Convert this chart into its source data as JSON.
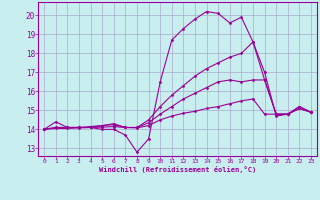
{
  "xlabel": "Windchill (Refroidissement éolien,°C)",
  "bg_color": "#c8eef0",
  "grid_color": "#aaaacc",
  "line_color": "#990099",
  "xlim": [
    -0.5,
    23.5
  ],
  "ylim": [
    12.6,
    20.7
  ],
  "yticks": [
    13,
    14,
    15,
    16,
    17,
    18,
    19,
    20
  ],
  "xticks": [
    0,
    1,
    2,
    3,
    4,
    5,
    6,
    7,
    8,
    9,
    10,
    11,
    12,
    13,
    14,
    15,
    16,
    17,
    18,
    19,
    20,
    21,
    22,
    23
  ],
  "series": [
    {
      "x": [
        0,
        1,
        2,
        3,
        4,
        5,
        6,
        7,
        8,
        9,
        10,
        11,
        12,
        13,
        14,
        15,
        16,
        17,
        18,
        19,
        20,
        21,
        22,
        23
      ],
      "y": [
        14.0,
        14.4,
        14.1,
        14.1,
        14.1,
        14.0,
        14.0,
        13.7,
        12.8,
        13.5,
        16.5,
        18.7,
        19.3,
        19.8,
        20.2,
        20.1,
        19.6,
        19.9,
        18.6,
        17.0,
        14.7,
        14.8,
        15.1,
        14.9
      ]
    },
    {
      "x": [
        0,
        1,
        2,
        3,
        4,
        5,
        6,
        7,
        8,
        9,
        10,
        11,
        12,
        13,
        14,
        15,
        16,
        17,
        18,
        19,
        20,
        21,
        22,
        23
      ],
      "y": [
        14.0,
        14.1,
        14.1,
        14.1,
        14.1,
        14.2,
        14.3,
        14.1,
        14.1,
        14.5,
        15.2,
        15.8,
        16.3,
        16.8,
        17.2,
        17.5,
        17.8,
        18.0,
        18.6,
        16.6,
        14.8,
        14.8,
        15.2,
        14.9
      ]
    },
    {
      "x": [
        0,
        1,
        2,
        3,
        4,
        5,
        6,
        7,
        8,
        9,
        10,
        11,
        12,
        13,
        14,
        15,
        16,
        17,
        18,
        19,
        20,
        21,
        22,
        23
      ],
      "y": [
        14.0,
        14.1,
        14.1,
        14.1,
        14.15,
        14.2,
        14.25,
        14.1,
        14.1,
        14.35,
        14.8,
        15.2,
        15.6,
        15.9,
        16.2,
        16.5,
        16.6,
        16.5,
        16.6,
        16.6,
        14.8,
        14.8,
        15.2,
        14.9
      ]
    },
    {
      "x": [
        0,
        1,
        2,
        3,
        4,
        5,
        6,
        7,
        8,
        9,
        10,
        11,
        12,
        13,
        14,
        15,
        16,
        17,
        18,
        19,
        20,
        21,
        22,
        23
      ],
      "y": [
        14.0,
        14.05,
        14.05,
        14.08,
        14.1,
        14.12,
        14.15,
        14.1,
        14.08,
        14.2,
        14.5,
        14.7,
        14.85,
        14.95,
        15.1,
        15.2,
        15.35,
        15.5,
        15.6,
        14.8,
        14.8,
        14.8,
        15.1,
        14.9
      ]
    }
  ]
}
